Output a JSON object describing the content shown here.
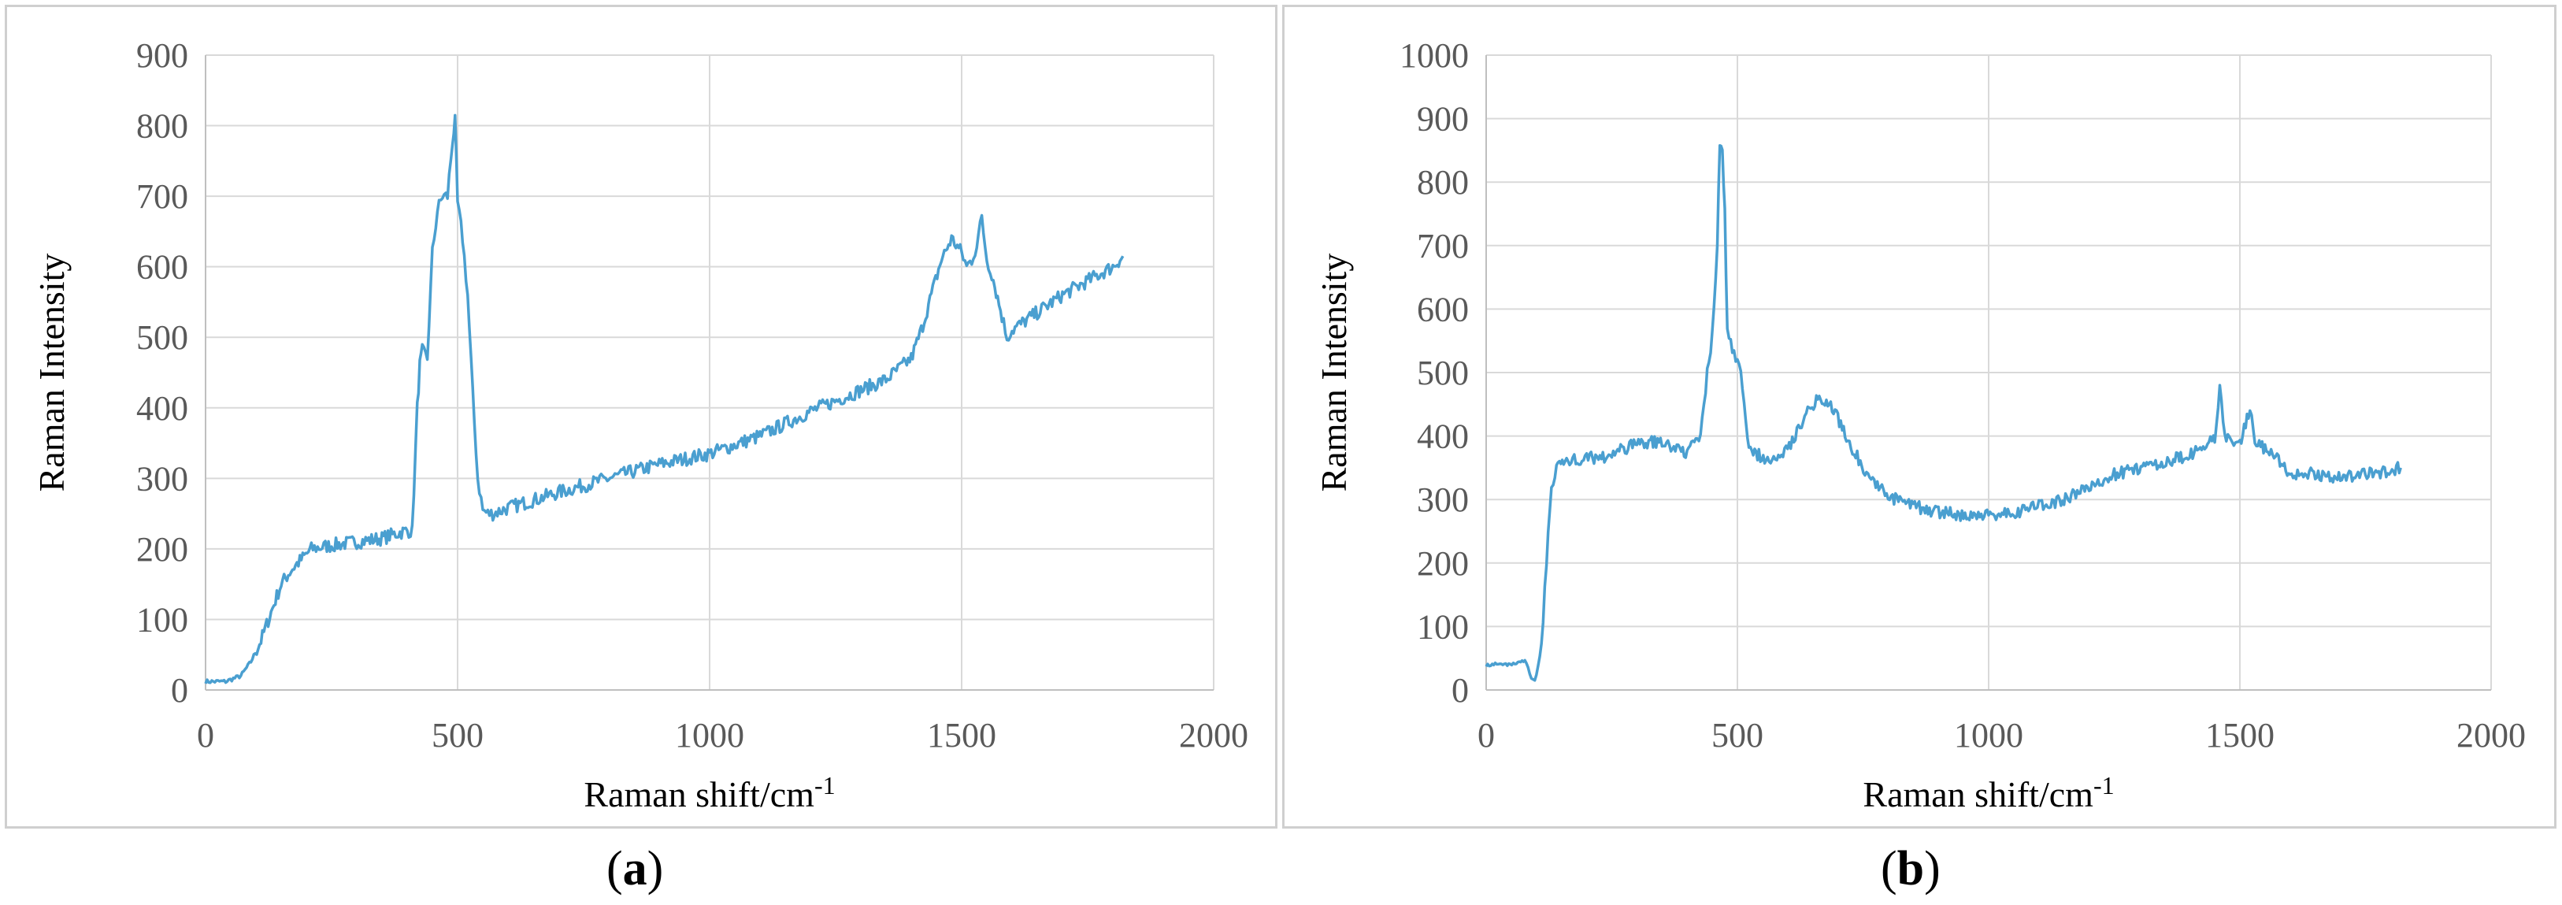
{
  "colors": {
    "series": "#4a9fd0"
  },
  "panels": [
    {
      "label_open": "(",
      "label_letter": "a",
      "label_close": ")",
      "chart_data": {
        "type": "line",
        "xlabel": "Raman shift/cm",
        "xlabel_sup": "-1",
        "ylabel": "Raman Intensity",
        "xlim": [
          0,
          2000
        ],
        "ylim": [
          0,
          900
        ],
        "xticks": [
          0,
          500,
          1000,
          1500,
          2000
        ],
        "yticks": [
          0,
          100,
          200,
          300,
          400,
          500,
          600,
          700,
          800,
          900
        ],
        "grid": true,
        "series": [
          {
            "x": [
              0,
              40,
              70,
              90,
              110,
              130,
              150,
              170,
              190,
              210,
              250,
              300,
              350,
              380,
              400,
              410,
              420,
              425,
              430,
              440,
              450,
              460,
              470,
              480,
              490,
              495,
              500,
              510,
              520,
              530,
              540,
              550,
              560,
              570,
              600,
              700,
              800,
              900,
              1000,
              1100,
              1200,
              1300,
              1350,
              1400,
              1420,
              1440,
              1460,
              1480,
              1500,
              1510,
              1520,
              1530,
              1540,
              1550,
              1560,
              1580,
              1590,
              1600,
              1650,
              1700,
              1750,
              1800,
              1820
            ],
            "y": [
              12,
              12,
              20,
              40,
              70,
              110,
              150,
              170,
              185,
              200,
              205,
              210,
              215,
              222,
              226,
              225,
              400,
              460,
              480,
              470,
              620,
              680,
              700,
              700,
              780,
              805,
              690,
              640,
              560,
              420,
              300,
              255,
              250,
              250,
              258,
              280,
              300,
              320,
              335,
              360,
              395,
              425,
              440,
              470,
              510,
              560,
              610,
              640,
              620,
              600,
              610,
              630,
              670,
              610,
              590,
              530,
              500,
              510,
              535,
              560,
              580,
              600,
              615
            ]
          }
        ]
      }
    },
    {
      "label_open": "(",
      "label_letter": "b",
      "label_close": ")",
      "chart_data": {
        "type": "line",
        "xlabel": "Raman shift/cm",
        "xlabel_sup": "-1",
        "ylabel": "Raman Intensity",
        "xlim": [
          0,
          2000
        ],
        "ylim": [
          0,
          1000
        ],
        "xticks": [
          0,
          500,
          1000,
          1500,
          2000
        ],
        "yticks": [
          0,
          100,
          200,
          300,
          400,
          500,
          600,
          700,
          800,
          900,
          1000
        ],
        "grid": true,
        "series": [
          {
            "x": [
              0,
              30,
              60,
              80,
              90,
              100,
              110,
              120,
              130,
              140,
              160,
              200,
              250,
              300,
              350,
              400,
              420,
              430,
              440,
              450,
              460,
              465,
              470,
              475,
              480,
              490,
              500,
              510,
              520,
              540,
              560,
              600,
              640,
              660,
              680,
              700,
              720,
              760,
              800,
              850,
              900,
              950,
              1000,
              1050,
              1100,
              1150,
              1200,
              1250,
              1300,
              1350,
              1400,
              1430,
              1450,
              1460,
              1470,
              1500,
              1520,
              1530,
              1550,
              1580,
              1600,
              1650,
              1700,
              1750,
              1800,
              1820
            ],
            "y": [
              40,
              40,
              42,
              45,
              20,
              15,
              70,
              200,
              320,
              355,
              360,
              365,
              370,
              390,
              390,
              375,
              390,
              420,
              500,
              560,
              700,
              860,
              850,
              760,
              560,
              540,
              520,
              480,
              390,
              370,
              365,
              380,
              440,
              460,
              450,
              430,
              390,
              340,
              305,
              290,
              280,
              275,
              275,
              280,
              290,
              300,
              320,
              340,
              350,
              360,
              370,
              380,
              400,
              470,
              400,
              390,
              440,
              390,
              380,
              360,
              340,
              340,
              335,
              340,
              345,
              350
            ]
          }
        ]
      }
    }
  ]
}
